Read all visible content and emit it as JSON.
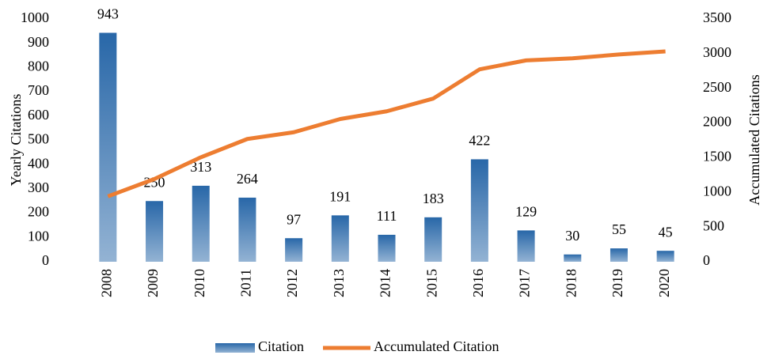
{
  "chart_data": {
    "type": "bar",
    "categories": [
      "2008",
      "2009",
      "2010",
      "2011",
      "2012",
      "2013",
      "2014",
      "2015",
      "2016",
      "2017",
      "2018",
      "2019",
      "2020"
    ],
    "series": [
      {
        "name": "Citation",
        "color": "#2867a8",
        "values": [
          943,
          250,
          313,
          264,
          97,
          191,
          111,
          183,
          422,
          129,
          30,
          55,
          45
        ]
      },
      {
        "name": "Accumulated Citation",
        "type": "line",
        "axis": "y2",
        "color": "#ed7d31",
        "values": [
          943,
          1193,
          1506,
          1770,
          1867,
          2058,
          2169,
          2352,
          2774,
          2903,
          2933,
          2988,
          3033
        ]
      }
    ],
    "ylabel": "Yearly Citations",
    "y2label": "Accumulated Citations",
    "ylim": [
      0,
      1000
    ],
    "yticks": [
      0,
      100,
      200,
      300,
      400,
      500,
      600,
      700,
      800,
      900,
      1000
    ],
    "y2lim": [
      0,
      3500
    ],
    "y2ticks": [
      0,
      500,
      1000,
      1500,
      2000,
      2500,
      3000,
      3500
    ],
    "legend": "bottom",
    "grid": false
  }
}
